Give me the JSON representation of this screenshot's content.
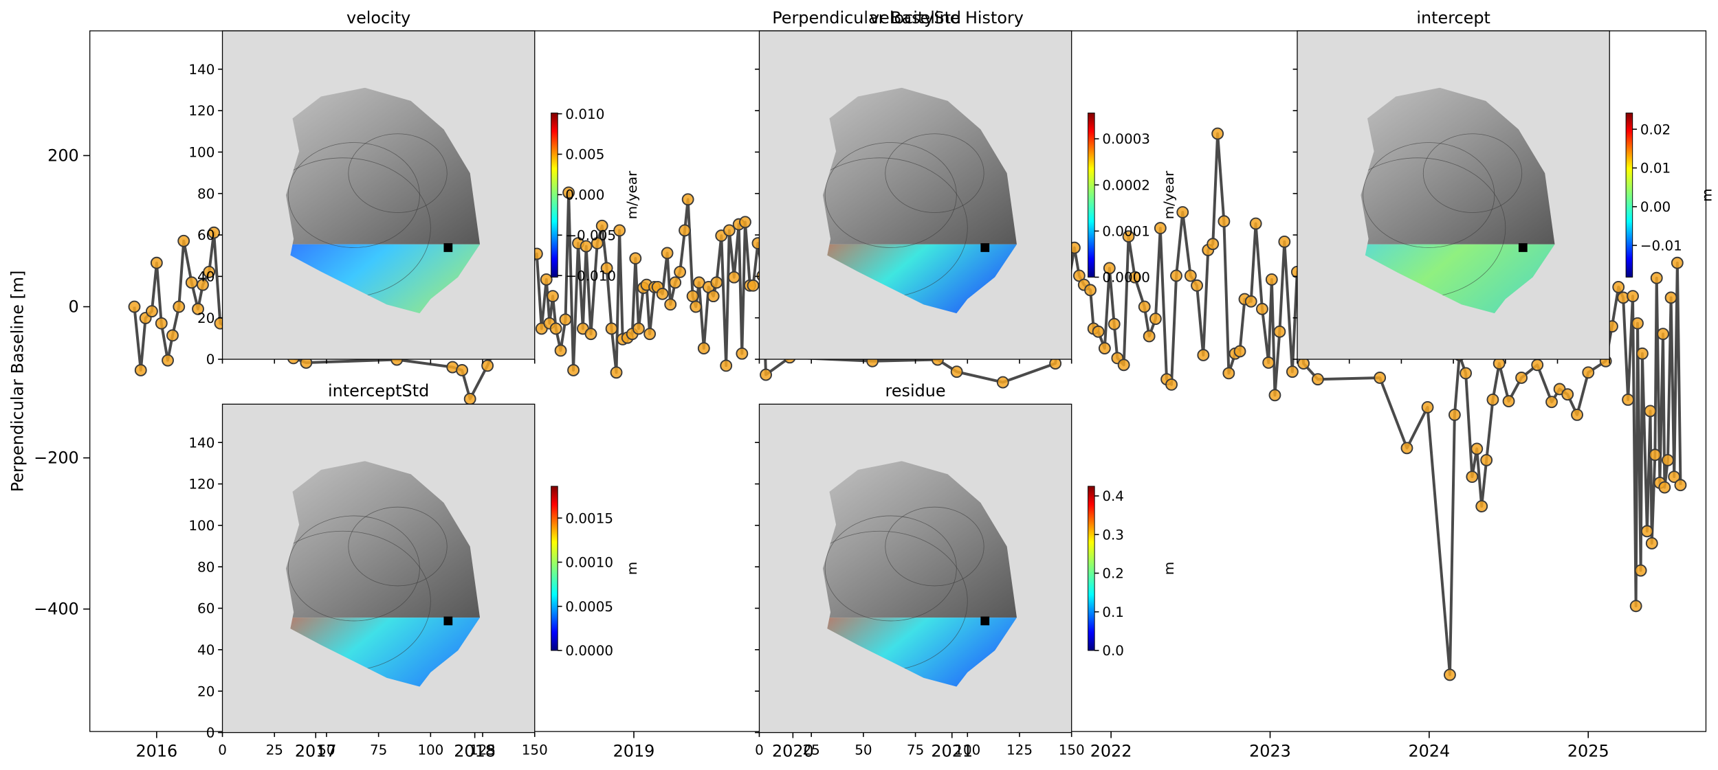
{
  "chart_data": [
    {
      "type": "line",
      "title": "Perpendicular Baseline History",
      "ylabel": "Perpendicular Baseline [m]",
      "color": "#4a4a4a",
      "marker_color": "#f5a623",
      "marker_edge": "#3a3a3a",
      "xlim": [
        2015.58,
        2025.74
      ],
      "ylim": [
        -562,
        365
      ],
      "xticks": [
        2016,
        2017,
        2018,
        2019,
        2020,
        2021,
        2022,
        2023,
        2024,
        2025
      ],
      "yticks": [
        {
          "value": -400,
          "label": "−400"
        },
        {
          "value": -200,
          "label": "−200"
        },
        0,
        200
      ],
      "x": [
        2015.86,
        2015.9,
        2015.93,
        2015.97,
        2016.0,
        2016.03,
        2016.07,
        2016.1,
        2016.14,
        2016.17,
        2016.22,
        2016.26,
        2016.29,
        2016.33,
        2016.36,
        2016.4,
        2016.86,
        2016.94,
        2017.51,
        2017.86,
        2017.92,
        2017.97,
        2018.08,
        2018.39,
        2018.42,
        2018.45,
        2018.47,
        2018.49,
        2018.51,
        2018.54,
        2018.57,
        2018.59,
        2018.62,
        2018.65,
        2018.68,
        2018.7,
        2018.73,
        2018.77,
        2018.8,
        2018.83,
        2018.86,
        2018.89,
        2018.91,
        2018.93,
        2018.96,
        2018.99,
        2019.01,
        2019.03,
        2019.06,
        2019.08,
        2019.1,
        2019.13,
        2019.15,
        2019.18,
        2019.21,
        2019.23,
        2019.26,
        2019.29,
        2019.32,
        2019.34,
        2019.37,
        2019.39,
        2019.41,
        2019.44,
        2019.47,
        2019.5,
        2019.52,
        2019.55,
        2019.58,
        2019.6,
        2019.63,
        2019.66,
        2019.68,
        2019.7,
        2019.73,
        2019.75,
        2019.78,
        2019.81,
        2019.83,
        2019.98,
        2020.5,
        2020.91,
        2021.03,
        2021.32,
        2021.65,
        2021.77,
        2021.8,
        2021.83,
        2021.87,
        2021.89,
        2021.92,
        2021.96,
        2021.99,
        2022.02,
        2022.04,
        2022.08,
        2022.11,
        2022.15,
        2022.21,
        2022.24,
        2022.28,
        2022.31,
        2022.35,
        2022.38,
        2022.41,
        2022.45,
        2022.5,
        2022.54,
        2022.58,
        2022.61,
        2022.64,
        2022.67,
        2022.71,
        2022.74,
        2022.78,
        2022.81,
        2022.84,
        2022.88,
        2022.91,
        2022.95,
        2022.99,
        2023.01,
        2023.03,
        2023.06,
        2023.09,
        2023.14,
        2023.17,
        2023.21,
        2023.3,
        2023.69,
        2023.86,
        2023.99,
        2024.13,
        2024.16,
        2024.19,
        2024.23,
        2024.27,
        2024.3,
        2024.33,
        2024.36,
        2024.4,
        2024.44,
        2024.5,
        2024.58,
        2024.68,
        2024.77,
        2024.82,
        2024.87,
        2024.93,
        2025.0,
        2025.11,
        2025.15,
        2025.19,
        2025.22,
        2025.25,
        2025.28,
        2025.3,
        2025.31,
        2025.33,
        2025.34,
        2025.37,
        2025.39,
        2025.4,
        2025.42,
        2025.43,
        2025.45,
        2025.47,
        2025.48,
        2025.5,
        2025.52,
        2025.54,
        2025.56,
        2025.58
      ],
      "values": [
        0,
        -84,
        -15,
        -6,
        58,
        -22,
        -71,
        -38,
        0,
        87,
        32,
        -3,
        29,
        46,
        98,
        -22,
        -68,
        -74,
        -70,
        -80,
        -84,
        -122,
        -78,
        70,
        -29,
        36,
        -22,
        14,
        -29,
        -58,
        -17,
        151,
        -84,
        84,
        -29,
        80,
        -36,
        84,
        107,
        51,
        -29,
        -87,
        101,
        -43,
        -41,
        -36,
        64,
        -29,
        25,
        29,
        -36,
        26,
        26,
        17,
        71,
        3,
        32,
        46,
        101,
        142,
        14,
        0,
        32,
        -55,
        26,
        14,
        32,
        94,
        -78,
        101,
        39,
        109,
        -62,
        112,
        28,
        28,
        84,
        41,
        -90,
        -67,
        -72,
        -70,
        -86,
        -100,
        -75,
        78,
        41,
        29,
        22,
        -29,
        -33,
        -55,
        51,
        -23,
        -68,
        -77,
        93,
        39,
        0,
        -39,
        -16,
        104,
        -96,
        -103,
        41,
        125,
        41,
        28,
        -64,
        75,
        83,
        229,
        113,
        -88,
        -62,
        -59,
        10,
        7,
        110,
        -3,
        -74,
        36,
        -117,
        -33,
        86,
        -86,
        46,
        -75,
        -96,
        -94,
        -187,
        -133,
        -487,
        -143,
        -64,
        -88,
        -225,
        -188,
        -264,
        -203,
        -123,
        -75,
        -125,
        -94,
        -77,
        -126,
        -109,
        -116,
        -143,
        -87,
        -72,
        -26,
        26,
        12,
        -123,
        14,
        -396,
        -22,
        -349,
        -62,
        -297,
        -138,
        -313,
        -196,
        38,
        -233,
        -36,
        -239,
        -203,
        12,
        -225,
        58,
        -236
      ]
    },
    {
      "type": "image",
      "title": "velocity",
      "xlim": [
        0,
        150
      ],
      "ylim": [
        0,
        158.5
      ],
      "xticks": [
        0,
        25,
        50,
        75,
        100,
        125,
        150
      ],
      "yticks": [
        0,
        20,
        40,
        60,
        80,
        100,
        120,
        140
      ],
      "show_xticklabels": false,
      "show_yticklabels": true,
      "colorbar": {
        "label": "m/year",
        "clim": [
          -0.0102,
          0.0101
        ],
        "ticks": [
          {
            "value": -0.01,
            "label": "−0.010"
          },
          {
            "value": -0.005,
            "label": "−0.005"
          },
          {
            "value": 0,
            "label": "0.000"
          },
          {
            "value": 0.005,
            "label": "0.005"
          },
          {
            "value": 0.01,
            "label": "0.010"
          }
        ]
      }
    },
    {
      "type": "image",
      "title": "velocityStd",
      "xlim": [
        0,
        150
      ],
      "ylim": [
        0,
        158.5
      ],
      "xticks": [
        0,
        25,
        50,
        75,
        100,
        125,
        150
      ],
      "yticks": [
        0,
        20,
        40,
        60,
        80,
        100,
        120,
        140
      ],
      "show_xticklabels": false,
      "show_yticklabels": false,
      "colorbar": {
        "label": "m/year",
        "clim": [
          0,
          0.000356
        ],
        "ticks": [
          {
            "value": 0,
            "label": "0.0000"
          },
          0.0001,
          0.0002,
          0.0003
        ]
      }
    },
    {
      "type": "image",
      "title": "intercept",
      "xlim": [
        0,
        150
      ],
      "ylim": [
        0,
        158.5
      ],
      "xticks": [
        0,
        25,
        50,
        75,
        100,
        125,
        150
      ],
      "yticks": [
        0,
        20,
        40,
        60,
        80,
        100,
        120,
        140
      ],
      "show_xticklabels": false,
      "show_yticklabels": false,
      "colorbar": {
        "label": "m",
        "clim": [
          -0.0182,
          0.0242
        ],
        "ticks": [
          {
            "value": -0.01,
            "label": "−0.01"
          },
          {
            "value": 0,
            "label": "0.00"
          },
          0.01,
          0.02
        ]
      }
    },
    {
      "type": "image",
      "title": "interceptStd",
      "xlim": [
        0,
        150
      ],
      "ylim": [
        0,
        158.5
      ],
      "xticks": [
        0,
        25,
        50,
        75,
        100,
        125,
        150
      ],
      "yticks": [
        0,
        20,
        40,
        60,
        80,
        100,
        120,
        140
      ],
      "show_xticklabels": true,
      "show_yticklabels": true,
      "colorbar": {
        "label": "m",
        "clim": [
          0,
          0.00186
        ],
        "ticks": [
          {
            "value": 0,
            "label": "0.0000"
          },
          {
            "value": 0.0005,
            "label": "0.0005"
          },
          {
            "value": 0.001,
            "label": "0.0010"
          },
          {
            "value": 0.0015,
            "label": "0.0015"
          }
        ]
      }
    },
    {
      "type": "image",
      "title": "residue",
      "xlim": [
        0,
        150
      ],
      "ylim": [
        0,
        158.5
      ],
      "xticks": [
        0,
        25,
        50,
        75,
        100,
        125,
        150
      ],
      "yticks": [
        0,
        20,
        40,
        60,
        80,
        100,
        120,
        140
      ],
      "show_xticklabels": true,
      "show_yticklabels": false,
      "colorbar": {
        "label": "m",
        "clim": [
          0,
          0.425
        ],
        "ticks": [
          {
            "value": 0,
            "label": "0.0"
          },
          0.1,
          0.2,
          0.3,
          0.4
        ]
      }
    }
  ]
}
